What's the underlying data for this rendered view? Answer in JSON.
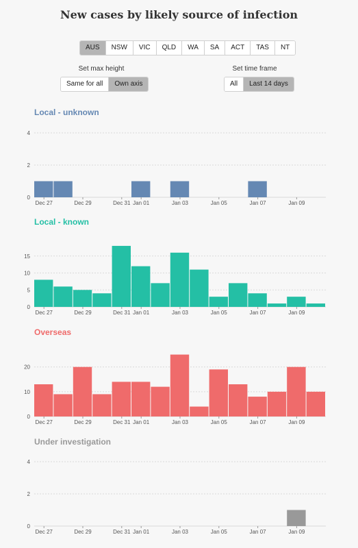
{
  "title": "New cases by likely source of infection",
  "regions": [
    {
      "label": "AUS",
      "active": true
    },
    {
      "label": "NSW",
      "active": false
    },
    {
      "label": "VIC",
      "active": false
    },
    {
      "label": "QLD",
      "active": false
    },
    {
      "label": "WA",
      "active": false
    },
    {
      "label": "SA",
      "active": false
    },
    {
      "label": "ACT",
      "active": false
    },
    {
      "label": "TAS",
      "active": false
    },
    {
      "label": "NT",
      "active": false
    }
  ],
  "controls": {
    "max_height": {
      "label": "Set max height",
      "options": [
        {
          "label": "Same for all",
          "active": false
        },
        {
          "label": "Own axis",
          "active": true
        }
      ]
    },
    "time_frame": {
      "label": "Set time frame",
      "options": [
        {
          "label": "All",
          "active": false
        },
        {
          "label": "Last 14 days",
          "active": true
        }
      ]
    }
  },
  "chart_data": [
    {
      "type": "bar",
      "title": "Local - unknown",
      "color": "#6588b3",
      "x": [
        "Dec 27",
        "Dec 28",
        "Dec 29",
        "Dec 30",
        "Dec 31",
        "Jan 01",
        "Jan 02",
        "Jan 03",
        "Jan 04",
        "Jan 05",
        "Jan 06",
        "Jan 07",
        "Jan 08",
        "Jan 09"
      ],
      "values": [
        1,
        1,
        0,
        0,
        0,
        1,
        0,
        1,
        0,
        0,
        0,
        1,
        0,
        0
      ],
      "yticks": [
        0,
        2,
        4
      ],
      "ylim": [
        0,
        4
      ],
      "xticks": [
        "Dec 27",
        "Dec 29",
        "Dec 31",
        "Jan 01",
        "Jan 03",
        "Jan 05",
        "Jan 07",
        "Jan 09"
      ]
    },
    {
      "type": "bar",
      "title": "Local - known",
      "color": "#24bfa5",
      "x": [
        "Dec 27",
        "Dec 28",
        "Dec 29",
        "Dec 30",
        "Dec 31",
        "Jan 01",
        "Jan 02",
        "Jan 03",
        "Jan 04",
        "Jan 05",
        "Jan 06",
        "Jan 07",
        "Jan 08",
        "Jan 09",
        "Jan 10"
      ],
      "values": [
        8,
        6,
        5,
        4,
        18,
        12,
        7,
        16,
        11,
        3,
        7,
        4,
        1,
        3,
        1
      ],
      "yticks": [
        0,
        5,
        10,
        15
      ],
      "ylim": [
        0,
        19
      ],
      "xticks": [
        "Dec 27",
        "Dec 29",
        "Dec 31",
        "Jan 01",
        "Jan 03",
        "Jan 05",
        "Jan 07",
        "Jan 09"
      ]
    },
    {
      "type": "bar",
      "title": "Overseas",
      "color": "#ef6b6b",
      "x": [
        "Dec 27",
        "Dec 28",
        "Dec 29",
        "Dec 30",
        "Dec 31",
        "Jan 01",
        "Jan 02",
        "Jan 03",
        "Jan 04",
        "Jan 05",
        "Jan 06",
        "Jan 07",
        "Jan 08",
        "Jan 09",
        "Jan 10"
      ],
      "values": [
        13,
        9,
        20,
        9,
        14,
        14,
        12,
        25,
        4,
        19,
        13,
        8,
        10,
        20,
        10
      ],
      "yticks": [
        0,
        10,
        20
      ],
      "ylim": [
        0,
        26
      ],
      "xticks": [
        "Dec 27",
        "Dec 29",
        "Dec 31",
        "Jan 01",
        "Jan 03",
        "Jan 05",
        "Jan 07",
        "Jan 09"
      ]
    },
    {
      "type": "bar",
      "title": "Under investigation",
      "color": "#999999",
      "x": [
        "Dec 27",
        "Dec 28",
        "Dec 29",
        "Dec 30",
        "Dec 31",
        "Jan 01",
        "Jan 02",
        "Jan 03",
        "Jan 04",
        "Jan 05",
        "Jan 06",
        "Jan 07",
        "Jan 08",
        "Jan 09"
      ],
      "values": [
        0,
        0,
        0,
        0,
        0,
        0,
        0,
        0,
        0,
        0,
        0,
        0,
        0,
        1
      ],
      "yticks": [
        0,
        2,
        4
      ],
      "ylim": [
        0,
        4
      ],
      "xticks": [
        "Dec 27",
        "Dec 29",
        "Dec 31",
        "Jan 01",
        "Jan 03",
        "Jan 05",
        "Jan 07",
        "Jan 09"
      ]
    }
  ]
}
